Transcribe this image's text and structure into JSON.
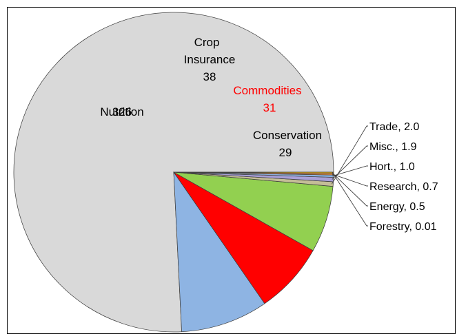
{
  "chart_data": {
    "type": "pie",
    "title": "",
    "start_angle_deg": 0,
    "direction": "counterclockwise",
    "slices": [
      {
        "label": "Nutrition",
        "value": 326,
        "value_text": "326",
        "color": "#d9d9d9",
        "label_placement": "inside",
        "label_color": "#000000"
      },
      {
        "label": "Crop Insurance",
        "label_lines": [
          "Crop",
          "Insurance"
        ],
        "value": 38,
        "value_text": "38",
        "color": "#8eb4e3",
        "label_placement": "inside",
        "label_color": "#000000"
      },
      {
        "label": "Commodities",
        "value": 31,
        "value_text": "31",
        "color": "#ff0000",
        "label_placement": "inside",
        "label_color": "#ff0000"
      },
      {
        "label": "Conservation",
        "value": 29,
        "value_text": "29",
        "color": "#92d050",
        "label_placement": "inside",
        "label_color": "#000000"
      },
      {
        "label": "Trade",
        "value": 2.0,
        "value_text": "2.0",
        "color": "#c4bd97",
        "label_placement": "outside"
      },
      {
        "label": "Misc.",
        "value": 1.9,
        "value_text": "1.9",
        "color": "#a9a0d8",
        "label_placement": "outside"
      },
      {
        "label": "Hort.",
        "value": 1.0,
        "value_text": "1.0",
        "color": "#8db3e2",
        "label_placement": "outside"
      },
      {
        "label": "Research",
        "value": 0.7,
        "value_text": "0.7",
        "color": "#f79646",
        "label_placement": "outside"
      },
      {
        "label": "Energy",
        "value": 0.5,
        "value_text": "0.5",
        "color": "#ffc000",
        "label_placement": "outside"
      },
      {
        "label": "Forestry",
        "value": 0.01,
        "value_text": "0.01",
        "color": "#7030a0",
        "label_placement": "outside"
      }
    ],
    "legend": "none",
    "data_labels": "category and value"
  }
}
